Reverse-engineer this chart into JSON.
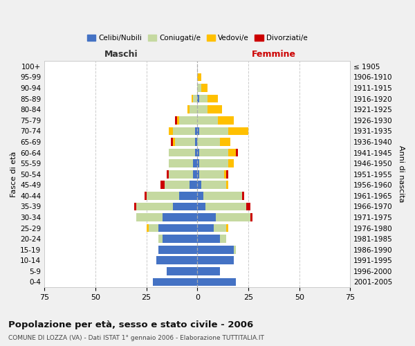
{
  "age_groups": [
    "0-4",
    "5-9",
    "10-14",
    "15-19",
    "20-24",
    "25-29",
    "30-34",
    "35-39",
    "40-44",
    "45-49",
    "50-54",
    "55-59",
    "60-64",
    "65-69",
    "70-74",
    "75-79",
    "80-84",
    "85-89",
    "90-94",
    "95-99",
    "100+"
  ],
  "birth_years": [
    "2001-2005",
    "1996-2000",
    "1991-1995",
    "1986-1990",
    "1981-1985",
    "1976-1980",
    "1971-1975",
    "1966-1970",
    "1961-1965",
    "1956-1960",
    "1951-1955",
    "1946-1950",
    "1941-1945",
    "1936-1940",
    "1931-1935",
    "1926-1930",
    "1921-1925",
    "1916-1920",
    "1911-1915",
    "1906-1910",
    "≤ 1905"
  ],
  "male_celibi": [
    22,
    15,
    20,
    19,
    17,
    19,
    17,
    12,
    9,
    4,
    2,
    2,
    1,
    1,
    1,
    0,
    0,
    0,
    0,
    0,
    0
  ],
  "male_coniugati": [
    0,
    0,
    0,
    0,
    2,
    5,
    13,
    18,
    16,
    12,
    12,
    12,
    13,
    10,
    11,
    9,
    4,
    2,
    0,
    0,
    0
  ],
  "male_vedovi": [
    0,
    0,
    0,
    0,
    0,
    1,
    0,
    0,
    0,
    0,
    0,
    0,
    0,
    1,
    2,
    1,
    1,
    1,
    0,
    0,
    0
  ],
  "male_divorziati": [
    0,
    0,
    0,
    0,
    0,
    0,
    0,
    1,
    1,
    2,
    1,
    0,
    0,
    1,
    0,
    1,
    0,
    0,
    0,
    0,
    0
  ],
  "female_celibi": [
    19,
    11,
    18,
    18,
    11,
    8,
    9,
    4,
    3,
    2,
    1,
    1,
    1,
    0,
    1,
    0,
    0,
    1,
    0,
    0,
    0
  ],
  "female_coniugati": [
    0,
    0,
    0,
    1,
    3,
    6,
    17,
    20,
    19,
    12,
    12,
    14,
    14,
    11,
    14,
    10,
    5,
    4,
    2,
    0,
    0
  ],
  "female_vedovi": [
    0,
    0,
    0,
    0,
    0,
    1,
    0,
    0,
    0,
    1,
    1,
    3,
    4,
    5,
    10,
    8,
    7,
    5,
    3,
    2,
    0
  ],
  "female_divorziati": [
    0,
    0,
    0,
    0,
    0,
    0,
    1,
    2,
    1,
    0,
    1,
    0,
    1,
    0,
    0,
    0,
    0,
    0,
    0,
    0,
    0
  ],
  "colors": {
    "celibi": "#4472c4",
    "coniugati": "#c5d9a0",
    "vedovi": "#ffc000",
    "divorziati": "#cc0000"
  },
  "title": "Popolazione per età, sesso e stato civile - 2006",
  "subtitle": "COMUNE DI LOZZA (VA) - Dati ISTAT 1° gennaio 2006 - Elaborazione TUTTITALIA.IT",
  "xlabel_left": "Maschi",
  "xlabel_right": "Femmine",
  "ylabel_left": "Fasce di età",
  "ylabel_right": "Anni di nascita",
  "xlim": 75,
  "bg_color": "#f0f0f0",
  "plot_bg": "#ffffff"
}
